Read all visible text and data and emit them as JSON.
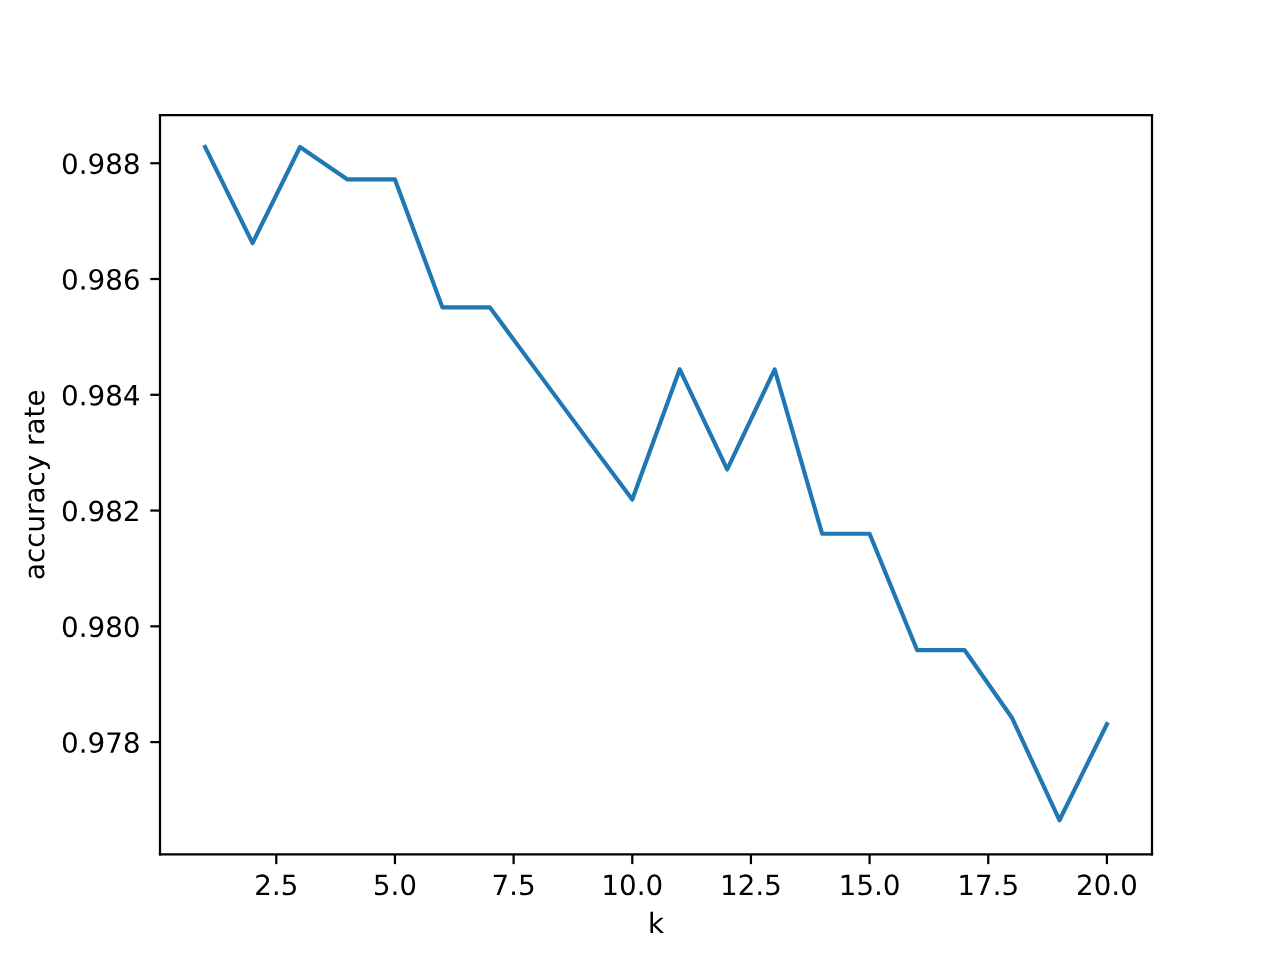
{
  "chart_data": {
    "type": "line",
    "xlabel": "k",
    "ylabel": "accuracy rate",
    "x": [
      1,
      2,
      3,
      4,
      5,
      6,
      7,
      8,
      9,
      10,
      11,
      12,
      13,
      14,
      15,
      16,
      17,
      18,
      19,
      20
    ],
    "series": [
      {
        "color": "#1f77b4",
        "values": [
          0.98828,
          0.98662,
          0.98828,
          0.98772,
          0.98772,
          0.98551,
          0.98551,
          0.9844,
          0.98329,
          0.98219,
          0.98444,
          0.98271,
          0.98444,
          0.9816,
          0.9816,
          0.97959,
          0.97959,
          0.97842,
          0.97665,
          0.97831
        ]
      }
    ],
    "xlim": [
      0.05,
      20.95
    ],
    "ylim": [
      0.97606,
      0.98883
    ],
    "xticks": [
      {
        "value": 2.5,
        "label": "2.5"
      },
      {
        "value": 5,
        "label": "5.0"
      },
      {
        "value": 7.5,
        "label": "7.5"
      },
      {
        "value": 10,
        "label": "10.0"
      },
      {
        "value": 12.5,
        "label": "12.5"
      },
      {
        "value": 15,
        "label": "15.0"
      },
      {
        "value": 17.5,
        "label": "17.5"
      },
      {
        "value": 20,
        "label": "20.0"
      }
    ],
    "yticks": [
      0.978,
      {
        "value": 0.98,
        "label": "0.980"
      },
      0.982,
      0.984,
      0.986,
      0.988
    ],
    "grid": false,
    "legend": false,
    "marker": "none",
    "line_style": "solid"
  }
}
